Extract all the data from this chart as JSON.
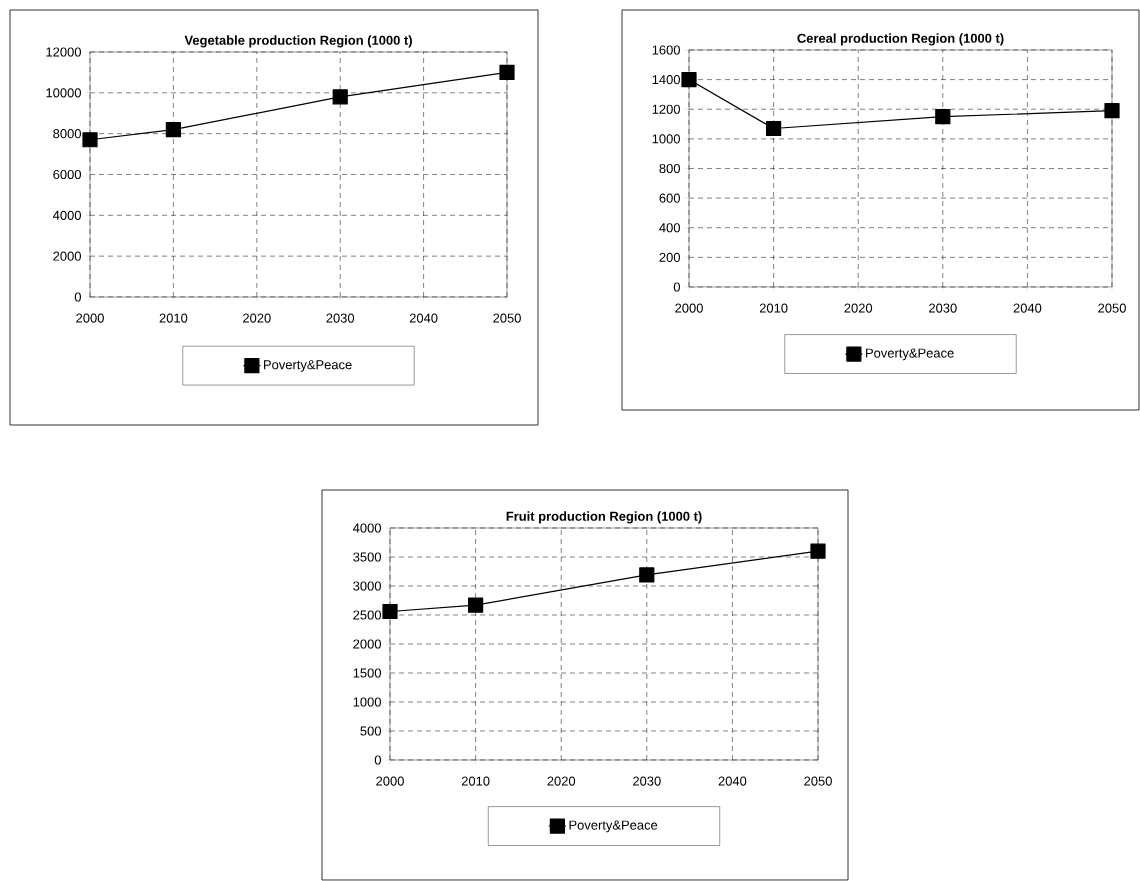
{
  "chart_data": [
    {
      "type": "line",
      "title": "Vegetable production Region (1000 t)",
      "x": [
        2000,
        2010,
        2030,
        2050
      ],
      "series": [
        {
          "name": "Poverty&Peace",
          "color": "#000000",
          "values": [
            7700,
            8200,
            9800,
            11000
          ]
        }
      ],
      "xlim": [
        2000,
        2050
      ],
      "xticks": [
        2000,
        2010,
        2020,
        2030,
        2040,
        2050
      ],
      "ylim": [
        0,
        12000
      ],
      "yticks": [
        0,
        2000,
        4000,
        6000,
        8000,
        10000,
        12000
      ],
      "grid": true,
      "legend": "bottom",
      "marker": "square",
      "line_style": "solid"
    },
    {
      "type": "line",
      "title": "Cereal production Region (1000 t)",
      "x": [
        2000,
        2010,
        2030,
        2050
      ],
      "series": [
        {
          "name": "Poverty&Peace",
          "color": "#000000",
          "values": [
            1400,
            1070,
            1150,
            1190
          ]
        }
      ],
      "xlim": [
        2000,
        2050
      ],
      "xticks": [
        2000,
        2010,
        2020,
        2030,
        2040,
        2050
      ],
      "ylim": [
        0,
        1600
      ],
      "yticks": [
        0,
        200,
        400,
        600,
        800,
        1000,
        1200,
        1400,
        1600
      ],
      "grid": true,
      "legend": "bottom",
      "marker": "square",
      "line_style": "solid"
    },
    {
      "type": "line",
      "title": "Fruit production Region (1000 t)",
      "x": [
        2000,
        2010,
        2030,
        2050
      ],
      "series": [
        {
          "name": "Poverty&Peace",
          "color": "#000000",
          "values": [
            2560,
            2670,
            3190,
            3600
          ]
        }
      ],
      "xlim": [
        2000,
        2050
      ],
      "xticks": [
        2000,
        2010,
        2020,
        2030,
        2040,
        2050
      ],
      "ylim": [
        0,
        4000
      ],
      "yticks": [
        0,
        500,
        1000,
        1500,
        2000,
        2500,
        3000,
        3500,
        4000
      ],
      "grid": true,
      "legend": "bottom",
      "marker": "square",
      "line_style": "solid"
    }
  ]
}
